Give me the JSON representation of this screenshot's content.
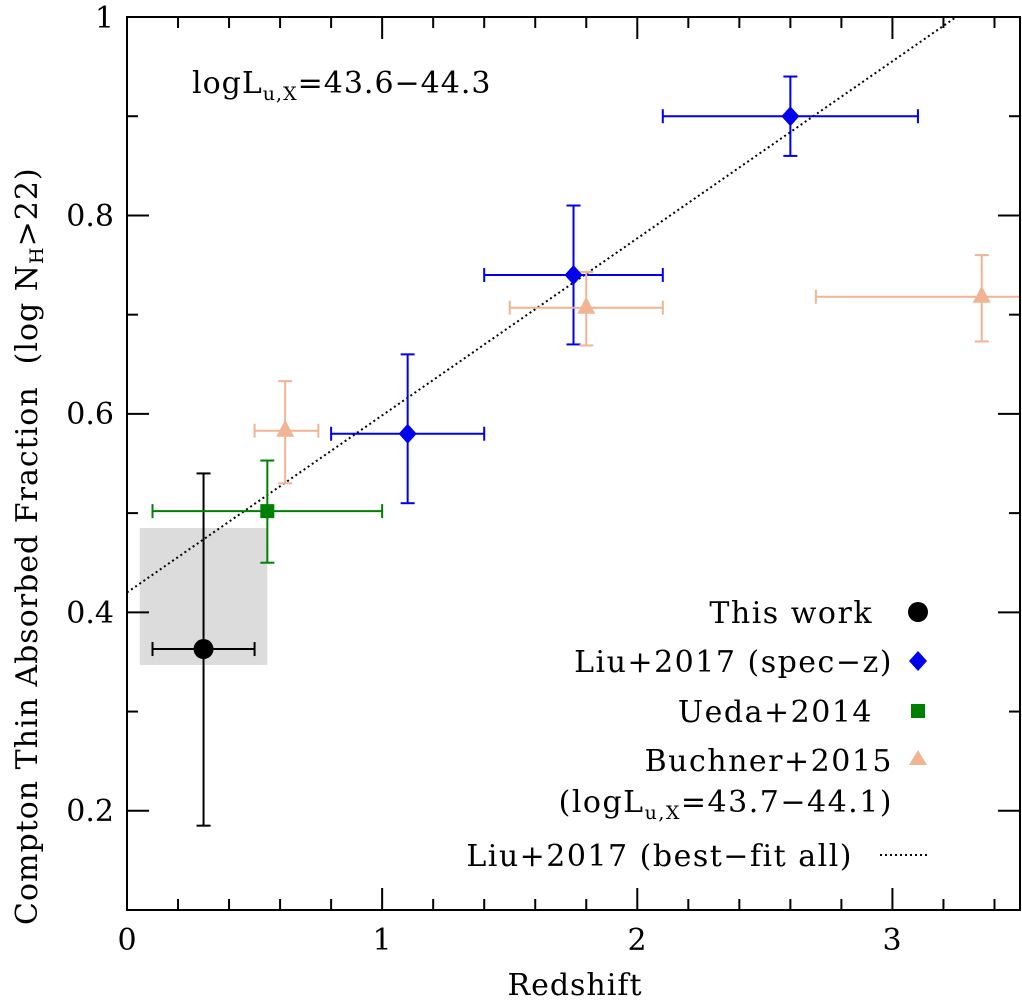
{
  "chart_data": {
    "type": "scatter",
    "title": "",
    "xlabel": "Redshift",
    "ylabel": "Compton Thin Absorbed Fraction (log N_H>22)",
    "ylabel_parts": {
      "main": "Compton Thin Absorbed Fraction",
      "paren_open": "(log N",
      "sub": "H",
      "paren_close": ">22)"
    },
    "xlim": [
      0,
      3.5
    ],
    "ylim": [
      0.1,
      1.0
    ],
    "x_ticks": [
      0,
      1,
      2,
      3
    ],
    "x_tick_labels": [
      "0",
      "1",
      "2",
      "3"
    ],
    "y_ticks": [
      0.2,
      0.4,
      0.6,
      0.8,
      1.0
    ],
    "y_tick_labels": [
      "0.2",
      "0.4",
      "0.6",
      "0.8",
      "1"
    ],
    "grid": false,
    "annotation": {
      "prefix": "logL",
      "sub": "u,X",
      "suffix": "=43.6−44.3"
    },
    "series": [
      {
        "name": "This work",
        "marker": "circle",
        "color": "#000000",
        "points": [
          {
            "x": 0.3,
            "y": 0.363,
            "xerr": [
              0.1,
              0.5
            ],
            "yerr": [
              0.185,
              0.54
            ]
          }
        ],
        "box": {
          "x": [
            0.05,
            0.55
          ],
          "y": [
            0.347,
            0.485
          ],
          "color": "#dcdcdc"
        }
      },
      {
        "name": "Liu+2017 (spec−z)",
        "marker": "diamond",
        "color": "#0000ee",
        "points": [
          {
            "x": 1.1,
            "y": 0.58,
            "xerr": [
              0.8,
              1.4
            ],
            "yerr": [
              0.51,
              0.66
            ]
          },
          {
            "x": 1.75,
            "y": 0.74,
            "xerr": [
              1.4,
              2.1
            ],
            "yerr": [
              0.67,
              0.81
            ]
          },
          {
            "x": 2.6,
            "y": 0.9,
            "xerr": [
              2.1,
              3.1
            ],
            "yerr": [
              0.86,
              0.94
            ]
          }
        ]
      },
      {
        "name": "Ueda+2014",
        "marker": "square",
        "color": "#008000",
        "points": [
          {
            "x": 0.55,
            "y": 0.502,
            "xerr": [
              0.1,
              1.0
            ],
            "yerr": [
              0.45,
              0.553
            ]
          }
        ]
      },
      {
        "name": "Buchner+2015",
        "name_line2": {
          "prefix": "(logL",
          "sub": "u,X",
          "suffix": "=43.7−44.1)"
        },
        "marker": "triangle",
        "color": "#f0b494",
        "points": [
          {
            "x": 0.62,
            "y": 0.583,
            "xerr": [
              0.5,
              0.75
            ],
            "yerr": [
              0.53,
              0.633
            ]
          },
          {
            "x": 1.8,
            "y": 0.707,
            "xerr": [
              1.5,
              2.1
            ],
            "yerr": [
              0.669,
              0.743
            ]
          },
          {
            "x": 3.35,
            "y": 0.718,
            "xerr": [
              2.7,
              3.5
            ],
            "yerr": [
              0.673,
              0.76
            ]
          }
        ]
      },
      {
        "name": "Liu+2017 (best−fit all)",
        "marker": "dotted-line",
        "color": "#000000",
        "line": {
          "x": [
            0,
            3.25
          ],
          "y": [
            0.42,
            1.0
          ]
        }
      }
    ],
    "legend_position": "bottom-right"
  }
}
